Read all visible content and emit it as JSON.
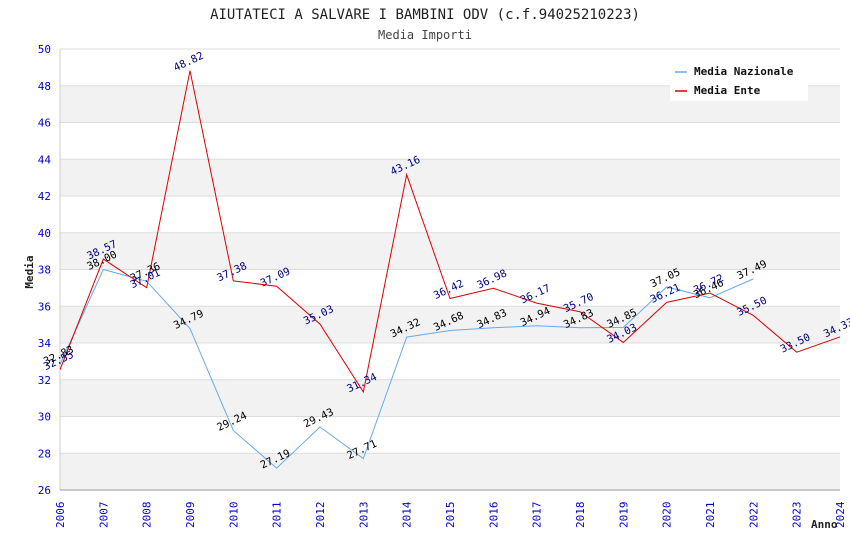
{
  "chart_data": {
    "type": "line",
    "title": "AIUTATECI A SALVARE I BAMBINI ODV (c.f.94025210223)",
    "subtitle": "Media Importi",
    "xlabel": "Anno",
    "ylabel": "Media",
    "ylim": [
      26,
      50
    ],
    "yticks": [
      "26",
      "28",
      "30",
      "32",
      "34",
      "36",
      "38",
      "40",
      "42",
      "44",
      "46",
      "48",
      "50"
    ],
    "categories": [
      "2006",
      "2007",
      "2008",
      "2009",
      "2010",
      "2011",
      "2012",
      "2013",
      "2014",
      "2015",
      "2016",
      "2017",
      "2018",
      "2019",
      "2020",
      "2021",
      "2022",
      "2023",
      "2024"
    ],
    "grid": true,
    "legend_position": "top-right",
    "series": [
      {
        "name": "Media Nazionale",
        "color": "#66aaee",
        "label_color": "#000000",
        "values": [
          32.83,
          38.0,
          37.36,
          34.79,
          29.24,
          27.19,
          29.43,
          27.71,
          34.32,
          34.68,
          34.83,
          34.94,
          34.83,
          34.85,
          37.05,
          36.46,
          37.49,
          null,
          null
        ],
        "labels": [
          "32.83",
          "38.00",
          "37.36",
          "34.79",
          "29.24",
          "27.19",
          "29.43",
          "27.71",
          "34.32",
          "34.68",
          "34.83",
          "34.94",
          "34.83",
          "34.85",
          "37.05",
          "36.46",
          "37.49",
          "",
          ""
        ]
      },
      {
        "name": "Media Ente",
        "color": "#dd0000",
        "label_color": "#000080",
        "values": [
          32.55,
          38.57,
          37.01,
          48.82,
          37.38,
          37.09,
          35.03,
          31.34,
          43.16,
          36.42,
          36.98,
          36.17,
          35.7,
          34.03,
          36.21,
          36.72,
          35.5,
          33.5,
          34.33
        ],
        "labels": [
          "32.55",
          "38.57",
          "37.01",
          "48.82",
          "37.38",
          "37.09",
          "35.03",
          "31.34",
          "43.16",
          "36.42",
          "36.98",
          "36.17",
          "35.70",
          "34.03",
          "36.21",
          "36.72",
          "35.50",
          "33.50",
          "34.33"
        ]
      }
    ]
  }
}
